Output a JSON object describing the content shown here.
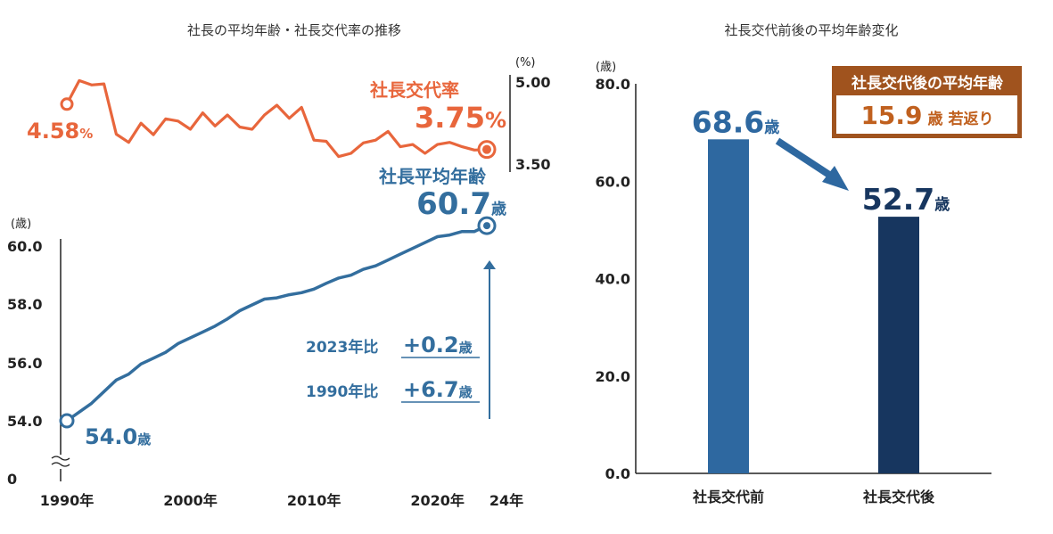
{
  "colors": {
    "rate": "#e8663c",
    "age": "#336e9e",
    "bar_before": "#2e68a0",
    "bar_after": "#17365f",
    "badge": "#a0531e",
    "badge_text": "#c0601e",
    "axis": "#222222"
  },
  "chart_data": [
    {
      "type": "line",
      "title": "社長の平均年齢・社長交代率の推移",
      "x": [
        1990,
        1991,
        1992,
        1993,
        1994,
        1995,
        1996,
        1997,
        1998,
        1999,
        2000,
        2001,
        2002,
        2003,
        2004,
        2005,
        2006,
        2007,
        2008,
        2009,
        2010,
        2011,
        2012,
        2013,
        2014,
        2015,
        2016,
        2017,
        2018,
        2019,
        2020,
        2021,
        2022,
        2023,
        2024
      ],
      "x_ticks": [
        "1990年",
        "2000年",
        "2010年",
        "2020年",
        "24年"
      ],
      "x_tick_values": [
        1990,
        2000,
        2010,
        2020,
        2024
      ],
      "series": [
        {
          "name": "社長交代率",
          "unit": "(%)",
          "values": [
            4.58,
            5.01,
            4.93,
            4.95,
            4.03,
            3.88,
            4.23,
            4.02,
            4.31,
            4.27,
            4.12,
            4.42,
            4.18,
            4.38,
            4.16,
            4.12,
            4.38,
            4.56,
            4.32,
            4.52,
            3.92,
            3.9,
            3.62,
            3.68,
            3.87,
            3.92,
            4.08,
            3.8,
            3.84,
            3.68,
            3.84,
            3.88,
            3.8,
            3.74,
            3.75
          ],
          "ylim": [
            3.5,
            5.0
          ],
          "y_ticks": [
            "5.00",
            "3.50"
          ],
          "y_tick_values": [
            5.0,
            3.5
          ],
          "label": "社長交代率",
          "start_label": "4.58",
          "end_label": "3.75",
          "percent": "%"
        },
        {
          "name": "社長平均年齢",
          "unit": "(歳)",
          "values": [
            54.0,
            54.3,
            54.6,
            55.0,
            55.4,
            55.6,
            55.95,
            56.15,
            56.35,
            56.65,
            56.85,
            57.05,
            57.25,
            57.5,
            57.78,
            57.98,
            58.18,
            58.22,
            58.33,
            58.4,
            58.52,
            58.72,
            58.9,
            59.0,
            59.2,
            59.32,
            59.52,
            59.72,
            59.92,
            60.12,
            60.32,
            60.38,
            60.5,
            60.5,
            60.7
          ],
          "ylim": [
            54.0,
            60.0
          ],
          "y_ticks": [
            "60.0",
            "58.0",
            "56.0",
            "54.0"
          ],
          "y_tick_values": [
            60.0,
            58.0,
            56.0,
            54.0
          ],
          "zero_label": "0",
          "label": "社長平均年齢",
          "start_label": "54.0",
          "end_label": "60.7",
          "age_suffix": "歳",
          "annotations": [
            {
              "prefix": "2023年比",
              "value": "+0.2",
              "suffix": "歳"
            },
            {
              "prefix": "1990年比",
              "value": "+6.7",
              "suffix": "歳"
            }
          ]
        }
      ]
    },
    {
      "type": "bar",
      "title": "社長交代前後の平均年齢変化",
      "ylabel": "(歳)",
      "categories": [
        "社長交代前",
        "社長交代後"
      ],
      "values": [
        68.6,
        52.7
      ],
      "value_labels": [
        "68.6",
        "52.7"
      ],
      "value_suffix": "歳",
      "ylim": [
        0,
        80
      ],
      "y_ticks": [
        "80.0",
        "60.0",
        "40.0",
        "20.0",
        "0.0"
      ],
      "y_tick_values": [
        80,
        60,
        40,
        20,
        0
      ],
      "badge_title": "社長交代後の平均年齢",
      "badge_value": "15.9",
      "badge_unit": "歳",
      "badge_suffix": "若返り"
    }
  ]
}
